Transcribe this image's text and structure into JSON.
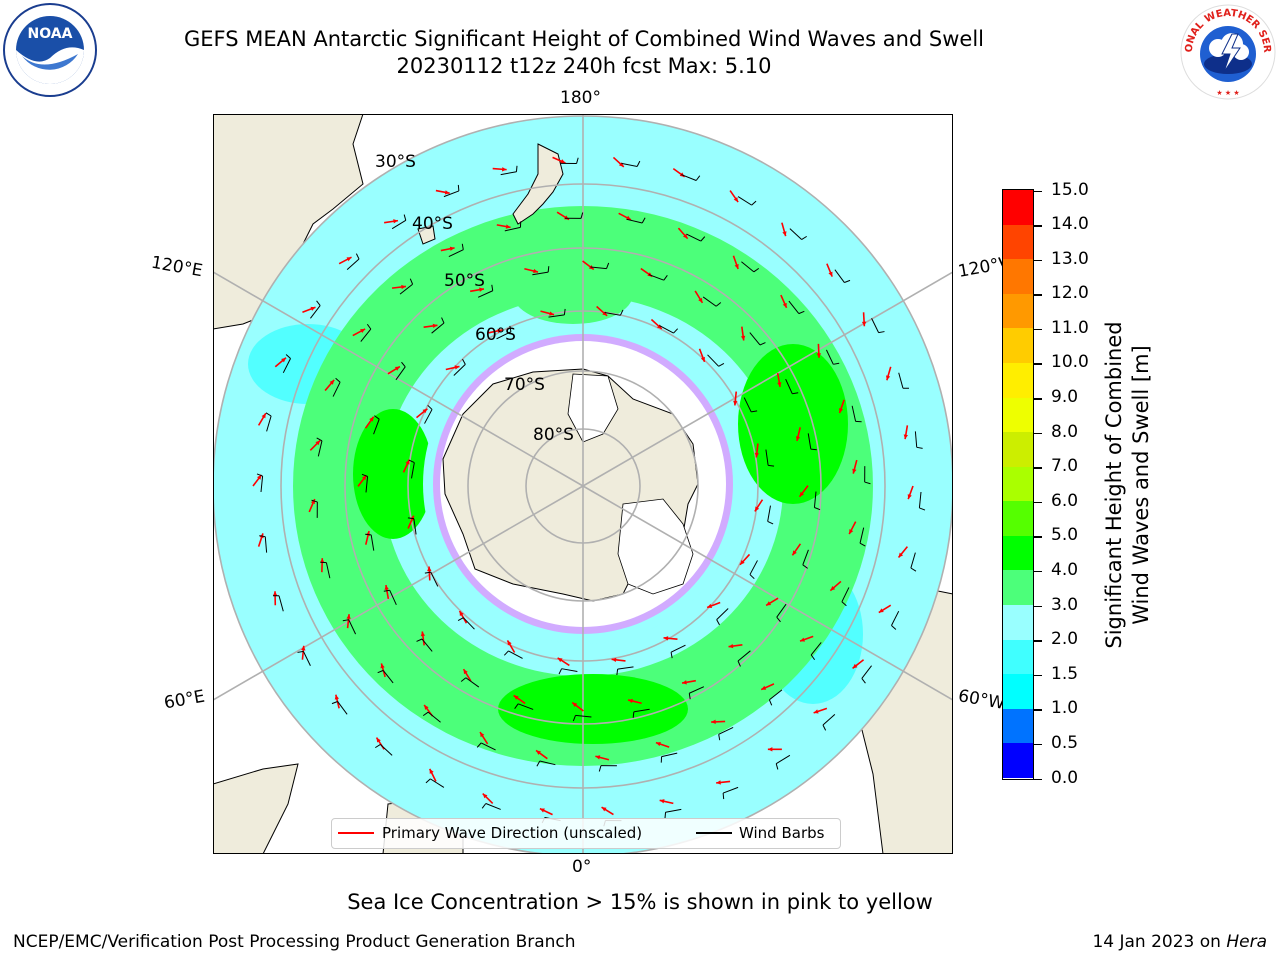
{
  "title": {
    "line1": "GEFS MEAN Antarctic Significant Height of Combined Wind Waves and Swell",
    "line2": "20230112 t12z 240h fcst   Max: 5.10"
  },
  "map": {
    "projection": "south-polar-stereographic",
    "longitude_labels": {
      "top": "180°",
      "bottom": "0°",
      "upper_left": "120°E",
      "upper_right": "120°W",
      "lower_left": "60°E",
      "lower_right": "60°W"
    },
    "latitude_labels": [
      "30°S",
      "40°S",
      "50°S",
      "60°S",
      "70°S",
      "80°S"
    ],
    "colors": {
      "land": "#efecdc",
      "ocean_background": "#ffffff",
      "grid": "#b0b0b0",
      "coast": "#000000",
      "wave_arrow": "#ff0000",
      "wind_barb": "#000000"
    }
  },
  "colorbar": {
    "title_line1": "Significant Height of Combined",
    "title_line2": "Wind Waves and Swell [m]",
    "tick_labels": [
      "0.0",
      "0.5",
      "1.0",
      "1.5",
      "2.0",
      "3.0",
      "4.0",
      "5.0",
      "6.0",
      "7.0",
      "8.0",
      "9.0",
      "10.0",
      "11.0",
      "12.0",
      "13.0",
      "14.0",
      "15.0"
    ],
    "colors": [
      "#0000ff",
      "#0073ff",
      "#00ffff",
      "#40ffff",
      "#99ffff",
      "#4cff7a",
      "#00ff00",
      "#55ff00",
      "#aaff00",
      "#ccee00",
      "#eeff00",
      "#ffee00",
      "#ffcc00",
      "#ff9900",
      "#ff7700",
      "#ff4400",
      "#ff0000"
    ]
  },
  "legend": {
    "wave_label": "Primary Wave Direction (unscaled)",
    "wind_label": "Wind Barbs"
  },
  "caption": "Sea Ice Concentration > 15% is shown in pink to yellow",
  "footer": {
    "left": "NCEP/EMC/Verification Post Processing Product Generation Branch",
    "right_prefix": "14 Jan 2023 on ",
    "right_italic": "Hera"
  },
  "logos": {
    "left": "NOAA",
    "right": "NATIONAL WEATHER SERVICE"
  }
}
